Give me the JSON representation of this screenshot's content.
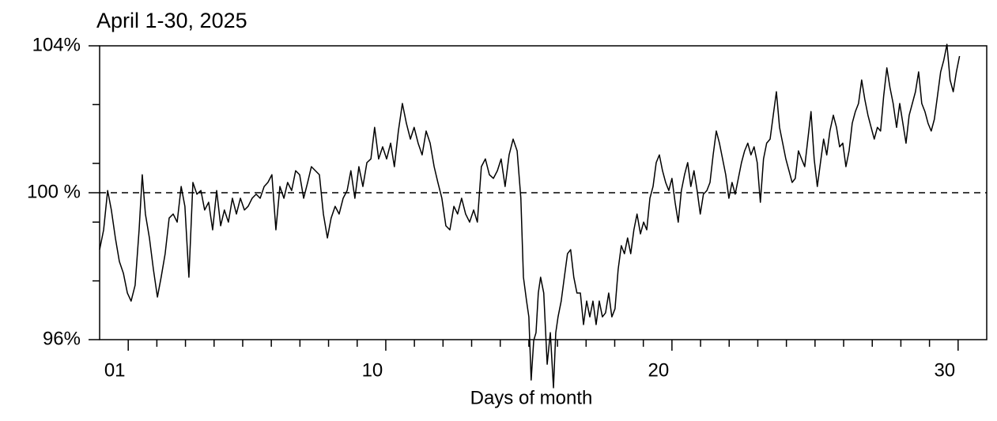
{
  "chart_data": {
    "type": "line",
    "title": "April 1-30, 2025",
    "x_label": "Days of month",
    "color": "#000000",
    "xlim": [
      0,
      31
    ],
    "xticks": [
      {
        "value": 1,
        "label": "01"
      },
      10,
      20,
      30
    ],
    "minor_xticks": [
      2,
      3,
      4,
      5,
      6,
      7,
      8,
      9,
      11,
      12,
      13,
      14,
      15,
      16,
      17,
      18,
      19,
      21,
      22,
      23,
      24,
      25,
      26,
      27,
      28,
      29
    ],
    "ylim": [
      96,
      104
    ],
    "yticks": [
      {
        "value": 96,
        "label": "96%"
      },
      {
        "value": 100,
        "label": "100 %"
      },
      {
        "value": 104,
        "label": "104%"
      }
    ],
    "minor_yticks": [
      97.6,
      99.2,
      100.8,
      102.4
    ],
    "reference_line": 100,
    "x": [
      0,
      0.14,
      0.28,
      0.41,
      0.55,
      0.69,
      0.83,
      0.97,
      1.1,
      1.24,
      1.38,
      1.49,
      1.6,
      1.74,
      1.88,
      2.02,
      2.15,
      2.29,
      2.43,
      2.57,
      2.71,
      2.85,
      2.98,
      3.12,
      3.26,
      3.4,
      3.54,
      3.67,
      3.81,
      3.95,
      4.09,
      4.23,
      4.36,
      4.5,
      4.64,
      4.78,
      4.92,
      5.06,
      5.19,
      5.33,
      5.47,
      5.61,
      5.75,
      5.88,
      6.02,
      6.16,
      6.3,
      6.44,
      6.57,
      6.71,
      6.85,
      6.99,
      7.13,
      7.27,
      7.4,
      7.54,
      7.68,
      7.82,
      7.96,
      8.09,
      8.23,
      8.37,
      8.51,
      8.65,
      8.78,
      8.92,
      9.06,
      9.2,
      9.34,
      9.48,
      9.61,
      9.75,
      9.89,
      10.03,
      10.17,
      10.3,
      10.44,
      10.58,
      10.72,
      10.86,
      10.99,
      11.13,
      11.27,
      11.41,
      11.55,
      11.69,
      11.82,
      11.96,
      12.1,
      12.24,
      12.38,
      12.51,
      12.65,
      12.79,
      12.93,
      13.07,
      13.2,
      13.34,
      13.48,
      13.62,
      13.76,
      13.9,
      14.03,
      14.17,
      14.31,
      14.45,
      14.59,
      14.72,
      14.81,
      14.92,
      15.0,
      15.08,
      15.17,
      15.25,
      15.33,
      15.41,
      15.52,
      15.64,
      15.75,
      15.86,
      15.94,
      16.02,
      16.13,
      16.24,
      16.35,
      16.46,
      16.57,
      16.68,
      16.8,
      16.91,
      17.02,
      17.13,
      17.24,
      17.35,
      17.46,
      17.57,
      17.68,
      17.79,
      17.9,
      18.01,
      18.12,
      18.23,
      18.34,
      18.45,
      18.56,
      18.67,
      18.78,
      18.9,
      19.01,
      19.12,
      19.23,
      19.34,
      19.45,
      19.56,
      19.67,
      19.78,
      19.89,
      20.0,
      20.11,
      20.22,
      20.33,
      20.44,
      20.55,
      20.66,
      20.77,
      20.88,
      20.99,
      21.1,
      21.22,
      21.33,
      21.44,
      21.55,
      21.66,
      21.77,
      21.88,
      21.99,
      22.1,
      22.21,
      22.32,
      22.43,
      22.54,
      22.65,
      22.76,
      22.87,
      22.98,
      23.09,
      23.2,
      23.31,
      23.43,
      23.54,
      23.65,
      23.76,
      23.87,
      23.98,
      24.09,
      24.2,
      24.31,
      24.42,
      24.53,
      24.64,
      24.75,
      24.86,
      24.97,
      25.08,
      25.19,
      25.3,
      25.41,
      25.52,
      25.64,
      25.75,
      25.86,
      25.97,
      26.08,
      26.19,
      26.3,
      26.41,
      26.52,
      26.63,
      26.74,
      26.85,
      26.96,
      27.07,
      27.18,
      27.29,
      27.4,
      27.51,
      27.62,
      27.73,
      27.85,
      27.96,
      28.07,
      28.18,
      28.29,
      28.4,
      28.51,
      28.62,
      28.73,
      28.84,
      28.95,
      29.06,
      29.17,
      29.28,
      29.39,
      29.5,
      29.61,
      29.72,
      29.83,
      29.94,
      30.05
    ],
    "values": [
      98.45,
      98.99,
      100.06,
      99.53,
      98.77,
      98.13,
      97.81,
      97.27,
      97.05,
      97.48,
      98.99,
      100.49,
      99.42,
      98.77,
      97.91,
      97.16,
      97.7,
      98.34,
      99.31,
      99.42,
      99.2,
      100.17,
      99.63,
      97.7,
      100.28,
      99.96,
      100.06,
      99.53,
      99.74,
      98.99,
      100.06,
      99.1,
      99.53,
      99.2,
      99.85,
      99.42,
      99.85,
      99.53,
      99.63,
      99.85,
      99.96,
      99.85,
      100.17,
      100.28,
      100.49,
      98.99,
      100.17,
      99.85,
      100.28,
      100.06,
      100.6,
      100.49,
      99.85,
      100.28,
      100.71,
      100.6,
      100.49,
      99.42,
      98.77,
      99.31,
      99.63,
      99.42,
      99.85,
      100.06,
      100.6,
      99.85,
      100.71,
      100.17,
      100.82,
      100.92,
      101.78,
      100.92,
      101.25,
      100.92,
      101.35,
      100.71,
      101.68,
      102.43,
      101.89,
      101.46,
      101.78,
      101.35,
      101.03,
      101.68,
      101.35,
      100.71,
      100.28,
      99.85,
      99.1,
      98.99,
      99.63,
      99.42,
      99.85,
      99.42,
      99.2,
      99.53,
      99.2,
      100.71,
      100.92,
      100.49,
      100.39,
      100.6,
      100.92,
      100.17,
      101.03,
      101.46,
      101.14,
      99.85,
      97.7,
      97.05,
      96.62,
      94.9,
      95.98,
      96.19,
      97.27,
      97.7,
      97.27,
      95.33,
      96.19,
      94.69,
      96.19,
      96.62,
      97.05,
      97.7,
      98.34,
      98.45,
      97.7,
      97.27,
      97.27,
      96.41,
      97.05,
      96.62,
      97.05,
      96.41,
      97.05,
      96.62,
      96.73,
      97.27,
      96.62,
      96.84,
      97.91,
      98.56,
      98.34,
      98.77,
      98.34,
      98.99,
      99.42,
      98.88,
      99.2,
      98.99,
      99.85,
      100.17,
      100.82,
      101.03,
      100.6,
      100.28,
      100.06,
      100.39,
      99.74,
      99.2,
      100.06,
      100.49,
      100.82,
      100.17,
      100.6,
      100.06,
      99.42,
      99.96,
      100.06,
      100.28,
      101.03,
      101.68,
      101.35,
      100.92,
      100.49,
      99.85,
      100.28,
      99.96,
      100.39,
      100.82,
      101.14,
      101.35,
      101.03,
      101.25,
      100.82,
      99.74,
      100.92,
      101.35,
      101.46,
      102.11,
      102.75,
      101.78,
      101.35,
      100.92,
      100.6,
      100.28,
      100.39,
      101.14,
      100.92,
      100.71,
      101.46,
      102.21,
      100.92,
      100.17,
      100.82,
      101.46,
      101.03,
      101.68,
      102.11,
      101.78,
      101.25,
      101.35,
      100.71,
      101.14,
      101.89,
      102.21,
      102.43,
      103.07,
      102.54,
      102.11,
      101.78,
      101.46,
      101.78,
      101.68,
      102.64,
      103.4,
      102.86,
      102.43,
      101.78,
      102.43,
      101.89,
      101.35,
      102.11,
      102.43,
      102.75,
      103.29,
      102.43,
      102.21,
      101.89,
      101.68,
      102.0,
      102.64,
      103.29,
      103.61,
      104.04,
      103.07,
      102.75,
      103.29,
      103.72
    ]
  }
}
